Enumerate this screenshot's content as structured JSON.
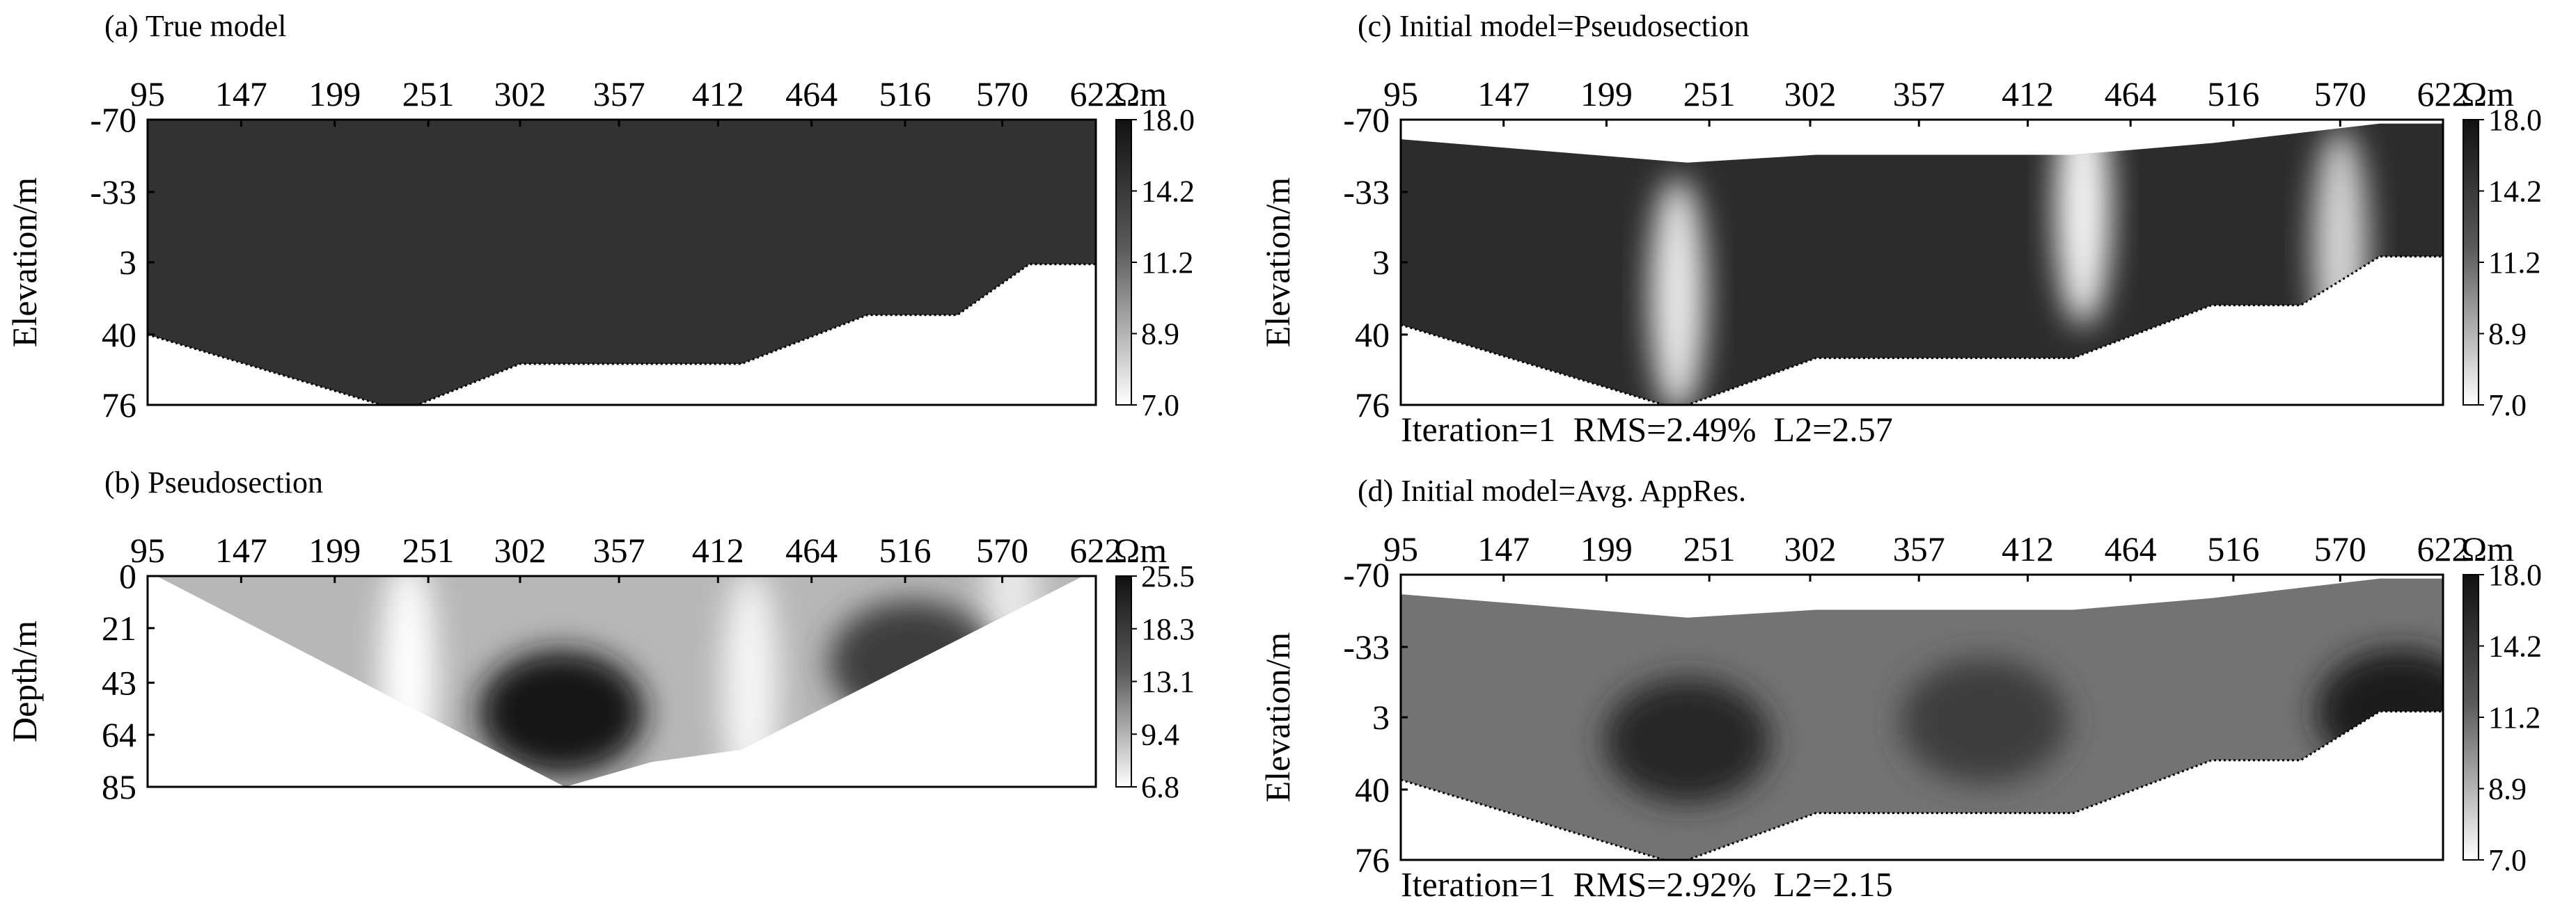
{
  "chart_data": [
    {
      "id": "a",
      "type": "heatmap",
      "title": "(a) True model",
      "x_ticks": [
        "95",
        "147",
        "199",
        "251",
        "302",
        "357",
        "412",
        "464",
        "516",
        "570",
        "622"
      ],
      "x_range": [
        95,
        622
      ],
      "ylabel": "Elevation/m",
      "y_ticks": [
        "76",
        "40",
        "3",
        "-33",
        "-70"
      ],
      "ylim": [
        -70,
        76
      ],
      "unit": "Ωm",
      "colorbar_ticks": [
        "18.0",
        "14.2",
        "11.2",
        "8.9",
        "7.0"
      ],
      "colorbar_range": [
        7.0,
        18.0
      ],
      "topography": [
        [
          95,
          40
        ],
        [
          225,
          76
        ],
        [
          245,
          76
        ],
        [
          302,
          55
        ],
        [
          425,
          55
        ],
        [
          495,
          30
        ],
        [
          545,
          30
        ],
        [
          585,
          4
        ],
        [
          622,
          4
        ]
      ],
      "bottom": [
        [
          95,
          -70
        ],
        [
          622,
          -70
        ]
      ],
      "uniform_value": 16.5
    },
    {
      "id": "b",
      "type": "heatmap",
      "title": "(b) Pseudosection",
      "x_ticks": [
        "95",
        "147",
        "199",
        "251",
        "302",
        "357",
        "412",
        "464",
        "516",
        "570",
        "622"
      ],
      "x_range": [
        95,
        622
      ],
      "ylabel": "Depth/m",
      "y_ticks": [
        "0",
        "21",
        "43",
        "64",
        "85"
      ],
      "ylim": [
        85,
        0
      ],
      "unit": "Ωm",
      "colorbar_ticks": [
        "25.5",
        "18.3",
        "13.1",
        "9.4",
        "6.8"
      ],
      "colorbar_range": [
        6.8,
        25.5
      ],
      "outline": [
        [
          100,
          0
        ],
        [
          615,
          0
        ],
        [
          425,
          70
        ],
        [
          375,
          75
        ],
        [
          327,
          85
        ],
        [
          100,
          0
        ]
      ],
      "anomalies": [
        {
          "x": 240,
          "depth": 40,
          "value": 6.8,
          "kind": "low"
        },
        {
          "x": 430,
          "depth": 45,
          "value": 7.5,
          "kind": "low"
        },
        {
          "x": 575,
          "depth": 20,
          "value": 8.5,
          "kind": "low"
        },
        {
          "x": 325,
          "depth": 55,
          "value": 25.5,
          "kind": "high"
        },
        {
          "x": 520,
          "depth": 35,
          "value": 22,
          "kind": "high"
        }
      ]
    },
    {
      "id": "c",
      "type": "heatmap",
      "title": "(c) Initial model=Pseudosection",
      "x_ticks": [
        "95",
        "147",
        "199",
        "251",
        "302",
        "357",
        "412",
        "464",
        "516",
        "570",
        "622"
      ],
      "x_range": [
        95,
        622
      ],
      "ylabel": "Elevation/m",
      "y_ticks": [
        "76",
        "40",
        "3",
        "-33",
        "-70"
      ],
      "ylim": [
        -70,
        76
      ],
      "unit": "Ωm",
      "colorbar_ticks": [
        "18.0",
        "14.2",
        "11.2",
        "8.9",
        "7.0"
      ],
      "colorbar_range": [
        7.0,
        18.0
      ],
      "topography": [
        [
          95,
          35
        ],
        [
          228,
          76
        ],
        [
          240,
          76
        ],
        [
          305,
          52
        ],
        [
          435,
          52
        ],
        [
          505,
          25
        ],
        [
          550,
          25
        ],
        [
          590,
          0
        ],
        [
          622,
          0
        ]
      ],
      "bottom": [
        [
          95,
          -60
        ],
        [
          240,
          -48
        ],
        [
          305,
          -52
        ],
        [
          435,
          -52
        ],
        [
          505,
          -58
        ],
        [
          590,
          -68
        ],
        [
          622,
          -68
        ]
      ],
      "anomalies": [
        {
          "x": 235,
          "elev": 20,
          "value": 8.0,
          "kind": "low"
        },
        {
          "x": 440,
          "elev": -25,
          "value": 7.5,
          "kind": "low"
        },
        {
          "x": 570,
          "elev": -5,
          "value": 9.0,
          "kind": "low"
        }
      ],
      "stats": {
        "iteration": "Iteration=1",
        "rms": "RMS=2.49%",
        "l2": "L2=2.57"
      }
    },
    {
      "id": "d",
      "type": "heatmap",
      "title": "(d) Initial model=Avg. AppRes.",
      "x_ticks": [
        "95",
        "147",
        "199",
        "251",
        "302",
        "357",
        "412",
        "464",
        "516",
        "570",
        "622"
      ],
      "x_range": [
        95,
        622
      ],
      "ylabel": "Elevation/m",
      "y_ticks": [
        "76",
        "40",
        "3",
        "-33",
        "-70"
      ],
      "ylim": [
        -70,
        76
      ],
      "unit": "Ωm",
      "colorbar_ticks": [
        "18.0",
        "14.2",
        "11.2",
        "8.9",
        "7.0"
      ],
      "colorbar_range": [
        7.0,
        18.0
      ],
      "topography": [
        [
          95,
          35
        ],
        [
          228,
          76
        ],
        [
          240,
          76
        ],
        [
          305,
          52
        ],
        [
          435,
          52
        ],
        [
          505,
          25
        ],
        [
          550,
          25
        ],
        [
          590,
          0
        ],
        [
          622,
          0
        ]
      ],
      "bottom": [
        [
          95,
          -60
        ],
        [
          240,
          -48
        ],
        [
          305,
          -52
        ],
        [
          435,
          -52
        ],
        [
          505,
          -58
        ],
        [
          590,
          -68
        ],
        [
          622,
          -68
        ]
      ],
      "anomalies": [
        {
          "x": 240,
          "elev": 15,
          "value": 17.0,
          "kind": "high"
        },
        {
          "x": 390,
          "elev": 5,
          "value": 16.0,
          "kind": "high"
        },
        {
          "x": 600,
          "elev": 0,
          "value": 17.5,
          "kind": "high"
        }
      ],
      "stats": {
        "iteration": "Iteration=1",
        "rms": "RMS=2.92%",
        "l2": "L2=2.15"
      }
    }
  ]
}
